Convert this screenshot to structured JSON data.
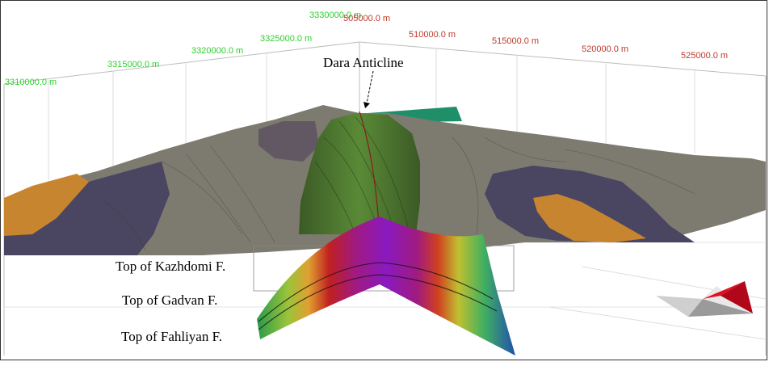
{
  "axes": {
    "northing": [
      "3310000.0 m",
      "3315000.0 m",
      "3320000.0 m",
      "3325000.0 m",
      "3330000.0 m"
    ],
    "easting": [
      "505000.0 m",
      "510000.0 m",
      "515000.0 m",
      "520000.0 m",
      "525000.0 m"
    ],
    "northing_color": "#2fcf2f",
    "easting_color": "#c0392b"
  },
  "annotations": {
    "anticline": "Dara Anticline",
    "horizons": [
      "Top of Kazhdomi F.",
      "Top of Gadvan F.",
      "Top of Fahliyan F."
    ]
  },
  "colors": {
    "terrain_gray": "#7d7a70",
    "terrain_green": "#4f7a2e",
    "terrain_purple": "#4a4560",
    "terrain_orange": "#c8852f",
    "seismic_top": "#8a1aa0"
  },
  "icons": {
    "compass": "north-arrow-icon"
  }
}
